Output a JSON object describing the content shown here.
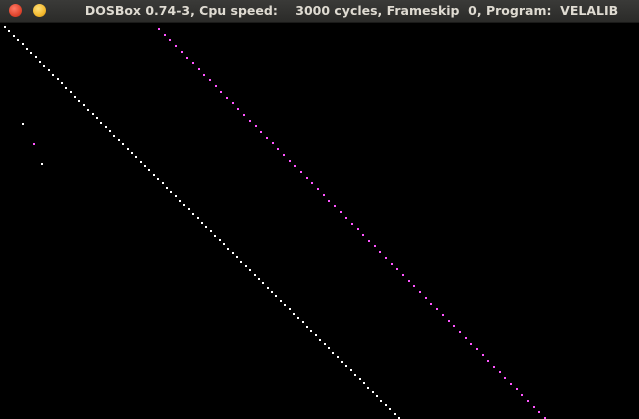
{
  "window": {
    "title": "DOSBox 0.74-3, Cpu speed:    3000 cycles, Frameskip  0, Program:  VELALIB",
    "controls": [
      {
        "name": "close",
        "color": "#e0452e"
      },
      {
        "name": "minimize",
        "color": "#f4b92e"
      }
    ]
  },
  "screen": {
    "background": "#000000",
    "trails": [
      {
        "name": "white-trail",
        "color": "#ffffff"
      },
      {
        "name": "magenta-trail",
        "color": "#ff55ff"
      }
    ],
    "scattered_points": [
      {
        "name": "white-dot",
        "color": "#ffffff"
      },
      {
        "name": "magenta-dot",
        "color": "#ff55ff"
      },
      {
        "name": "white-dot",
        "color": "#ffffff"
      }
    ]
  }
}
